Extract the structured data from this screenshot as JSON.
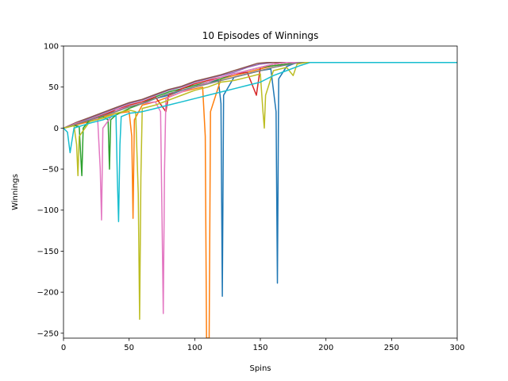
{
  "chart_data": {
    "type": "line",
    "title": "10 Episodes of Winnings",
    "xlabel": "Spins",
    "ylabel": "Winnings",
    "xlim": [
      0,
      300
    ],
    "ylim": [
      -256,
      100
    ],
    "xticks": [
      0,
      50,
      100,
      150,
      200,
      250,
      300
    ],
    "yticks": [
      100,
      50,
      0,
      -50,
      -100,
      -150,
      -200,
      -250
    ],
    "ytick_labels": [
      "100",
      "50",
      "0",
      "−50",
      "−100",
      "−150",
      "−200",
      "−250"
    ],
    "grid": false,
    "legend": "none",
    "plateau_value": 80,
    "series": [
      {
        "color": "#1f77b4",
        "points": [
          [
            0,
            0
          ],
          [
            10,
            4
          ],
          [
            20,
            9
          ],
          [
            30,
            15
          ],
          [
            40,
            22
          ],
          [
            50,
            26
          ],
          [
            60,
            30
          ],
          [
            70,
            36
          ],
          [
            80,
            40
          ],
          [
            90,
            46
          ],
          [
            100,
            50
          ],
          [
            110,
            56
          ],
          [
            118,
            58
          ],
          [
            120,
            30
          ],
          [
            121,
            -205
          ],
          [
            122,
            40
          ],
          [
            130,
            62
          ],
          [
            140,
            66
          ],
          [
            150,
            70
          ],
          [
            158,
            72
          ],
          [
            162,
            20
          ],
          [
            163,
            -189
          ],
          [
            164,
            60
          ],
          [
            170,
            75
          ],
          [
            178,
            80
          ],
          [
            300,
            80
          ]
        ]
      },
      {
        "color": "#ff7f0e",
        "points": [
          [
            0,
            0
          ],
          [
            10,
            4
          ],
          [
            20,
            8
          ],
          [
            30,
            14
          ],
          [
            40,
            18
          ],
          [
            50,
            20
          ],
          [
            52,
            -10
          ],
          [
            53,
            -110
          ],
          [
            54,
            10
          ],
          [
            60,
            28
          ],
          [
            70,
            32
          ],
          [
            80,
            38
          ],
          [
            90,
            44
          ],
          [
            100,
            48
          ],
          [
            106,
            50
          ],
          [
            108,
            -10
          ],
          [
            109,
            -256
          ],
          [
            111,
            -256
          ],
          [
            112,
            20
          ],
          [
            120,
            60
          ],
          [
            130,
            64
          ],
          [
            140,
            68
          ],
          [
            150,
            72
          ],
          [
            160,
            76
          ],
          [
            170,
            78
          ],
          [
            178,
            80
          ],
          [
            300,
            80
          ]
        ]
      },
      {
        "color": "#2ca02c",
        "points": [
          [
            0,
            0
          ],
          [
            8,
            3
          ],
          [
            12,
            2
          ],
          [
            13,
            -30
          ],
          [
            14,
            -58
          ],
          [
            15,
            0
          ],
          [
            20,
            10
          ],
          [
            30,
            14
          ],
          [
            34,
            10
          ],
          [
            35,
            -50
          ],
          [
            36,
            10
          ],
          [
            40,
            16
          ],
          [
            50,
            24
          ],
          [
            60,
            30
          ],
          [
            70,
            38
          ],
          [
            80,
            44
          ],
          [
            90,
            48
          ],
          [
            100,
            52
          ],
          [
            110,
            56
          ],
          [
            120,
            60
          ],
          [
            130,
            66
          ],
          [
            140,
            70
          ],
          [
            150,
            74
          ],
          [
            160,
            76
          ],
          [
            170,
            78
          ],
          [
            180,
            80
          ],
          [
            300,
            80
          ]
        ]
      },
      {
        "color": "#d62728",
        "points": [
          [
            0,
            0
          ],
          [
            10,
            5
          ],
          [
            20,
            10
          ],
          [
            30,
            16
          ],
          [
            40,
            22
          ],
          [
            50,
            28
          ],
          [
            60,
            32
          ],
          [
            70,
            38
          ],
          [
            78,
            20
          ],
          [
            80,
            40
          ],
          [
            90,
            48
          ],
          [
            100,
            54
          ],
          [
            110,
            58
          ],
          [
            120,
            62
          ],
          [
            130,
            66
          ],
          [
            140,
            68
          ],
          [
            147,
            40
          ],
          [
            150,
            74
          ],
          [
            160,
            78
          ],
          [
            170,
            80
          ],
          [
            300,
            80
          ]
        ]
      },
      {
        "color": "#9467bd",
        "points": [
          [
            0,
            0
          ],
          [
            10,
            6
          ],
          [
            20,
            12
          ],
          [
            30,
            18
          ],
          [
            40,
            24
          ],
          [
            50,
            30
          ],
          [
            60,
            34
          ],
          [
            70,
            40
          ],
          [
            80,
            46
          ],
          [
            90,
            50
          ],
          [
            100,
            56
          ],
          [
            110,
            60
          ],
          [
            120,
            64
          ],
          [
            130,
            68
          ],
          [
            140,
            74
          ],
          [
            150,
            78
          ],
          [
            160,
            80
          ],
          [
            300,
            80
          ]
        ]
      },
      {
        "color": "#8c564b",
        "points": [
          [
            0,
            0
          ],
          [
            10,
            7
          ],
          [
            20,
            13
          ],
          [
            30,
            19
          ],
          [
            40,
            25
          ],
          [
            50,
            31
          ],
          [
            60,
            35
          ],
          [
            70,
            41
          ],
          [
            80,
            47
          ],
          [
            90,
            51
          ],
          [
            100,
            57
          ],
          [
            110,
            61
          ],
          [
            120,
            65
          ],
          [
            130,
            70
          ],
          [
            140,
            75
          ],
          [
            148,
            79
          ],
          [
            155,
            80
          ],
          [
            300,
            80
          ]
        ]
      },
      {
        "color": "#e377c2",
        "points": [
          [
            0,
            0
          ],
          [
            10,
            6
          ],
          [
            20,
            10
          ],
          [
            26,
            12
          ],
          [
            28,
            -50
          ],
          [
            29,
            -112
          ],
          [
            30,
            0
          ],
          [
            40,
            22
          ],
          [
            50,
            26
          ],
          [
            60,
            30
          ],
          [
            70,
            32
          ],
          [
            74,
            20
          ],
          [
            75,
            -100
          ],
          [
            76,
            -226
          ],
          [
            77,
            -50
          ],
          [
            78,
            36
          ],
          [
            90,
            44
          ],
          [
            100,
            50
          ],
          [
            110,
            56
          ],
          [
            120,
            62
          ],
          [
            130,
            66
          ],
          [
            140,
            70
          ],
          [
            150,
            74
          ],
          [
            160,
            78
          ],
          [
            170,
            80
          ],
          [
            300,
            80
          ]
        ]
      },
      {
        "color": "#7f7f7f",
        "points": [
          [
            0,
            0
          ],
          [
            10,
            5
          ],
          [
            20,
            10
          ],
          [
            30,
            15
          ],
          [
            40,
            20
          ],
          [
            50,
            26
          ],
          [
            60,
            30
          ],
          [
            70,
            36
          ],
          [
            80,
            42
          ],
          [
            90,
            46
          ],
          [
            100,
            50
          ],
          [
            110,
            54
          ],
          [
            120,
            58
          ],
          [
            130,
            62
          ],
          [
            140,
            66
          ],
          [
            150,
            70
          ],
          [
            160,
            74
          ],
          [
            170,
            77
          ],
          [
            180,
            80
          ],
          [
            300,
            80
          ]
        ]
      },
      {
        "color": "#bcbd22",
        "points": [
          [
            0,
            0
          ],
          [
            8,
            3
          ],
          [
            10,
            -20
          ],
          [
            11,
            -58
          ],
          [
            12,
            -10
          ],
          [
            20,
            8
          ],
          [
            30,
            12
          ],
          [
            40,
            18
          ],
          [
            50,
            22
          ],
          [
            55,
            20
          ],
          [
            57,
            -80
          ],
          [
            58,
            -233
          ],
          [
            59,
            -60
          ],
          [
            60,
            24
          ],
          [
            70,
            28
          ],
          [
            80,
            34
          ],
          [
            90,
            40
          ],
          [
            100,
            46
          ],
          [
            110,
            50
          ],
          [
            120,
            56
          ],
          [
            130,
            58
          ],
          [
            140,
            62
          ],
          [
            150,
            66
          ],
          [
            152,
            20
          ],
          [
            153,
            0
          ],
          [
            154,
            40
          ],
          [
            160,
            70
          ],
          [
            170,
            74
          ],
          [
            175,
            64
          ],
          [
            178,
            78
          ],
          [
            185,
            80
          ],
          [
            300,
            80
          ]
        ]
      },
      {
        "color": "#17becf",
        "points": [
          [
            0,
            0
          ],
          [
            3,
            -5
          ],
          [
            5,
            -30
          ],
          [
            6,
            -20
          ],
          [
            8,
            0
          ],
          [
            20,
            6
          ],
          [
            30,
            10
          ],
          [
            40,
            16
          ],
          [
            41,
            -60
          ],
          [
            42,
            -114
          ],
          [
            43,
            -20
          ],
          [
            44,
            14
          ],
          [
            50,
            18
          ],
          [
            60,
            20
          ],
          [
            70,
            24
          ],
          [
            80,
            28
          ],
          [
            90,
            32
          ],
          [
            100,
            36
          ],
          [
            110,
            40
          ],
          [
            120,
            44
          ],
          [
            130,
            48
          ],
          [
            140,
            52
          ],
          [
            150,
            56
          ],
          [
            160,
            64
          ],
          [
            170,
            70
          ],
          [
            180,
            76
          ],
          [
            188,
            80
          ],
          [
            300,
            80
          ]
        ]
      }
    ]
  }
}
